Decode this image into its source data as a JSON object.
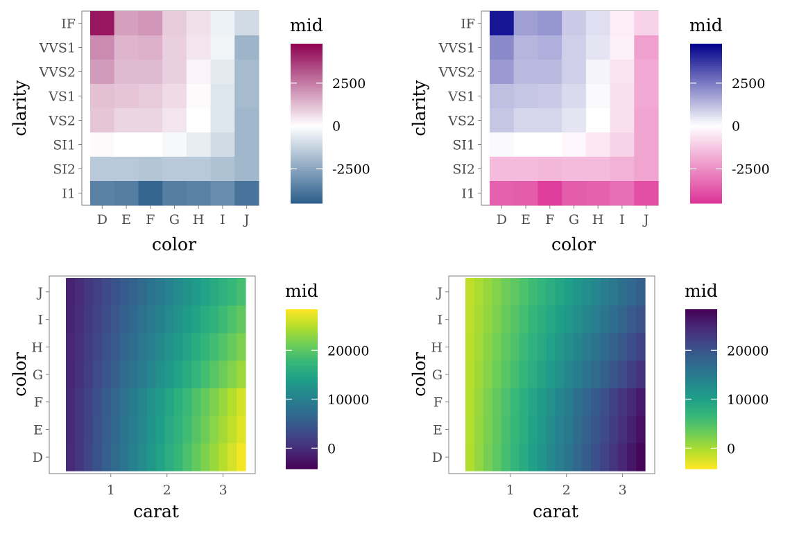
{
  "chart_data": [
    {
      "type": "heatmap",
      "xlabel": "color",
      "ylabel": "clarity",
      "x_categories": [
        "D",
        "E",
        "F",
        "G",
        "H",
        "I",
        "J"
      ],
      "y_categories": [
        "IF",
        "VVS1",
        "VVS2",
        "VS1",
        "VS2",
        "SI1",
        "SI2",
        "I1"
      ],
      "values": [
        [
          4400,
          1800,
          2000,
          1000,
          600,
          -400,
          -1000
        ],
        [
          2200,
          1400,
          1500,
          900,
          500,
          -300,
          -2100
        ],
        [
          1900,
          1300,
          1300,
          900,
          200,
          -600,
          -1900
        ],
        [
          1200,
          1100,
          1000,
          700,
          100,
          -700,
          -1900
        ],
        [
          1100,
          800,
          800,
          500,
          0,
          -700,
          -2000
        ],
        [
          100,
          0,
          0,
          -200,
          -500,
          -1000,
          -2000
        ],
        [
          -1500,
          -1500,
          -1600,
          -1500,
          -1500,
          -1700,
          -2000
        ],
        [
          -3500,
          -3600,
          -4300,
          -3600,
          -3500,
          -3200,
          -3900
        ]
      ],
      "legend": {
        "title": "mid",
        "breaks": [
          2500,
          0,
          -2500
        ],
        "break_labels": [
          "2500",
          "0",
          "-2500"
        ],
        "range": [
          -4500,
          4800
        ],
        "colors": {
          "high": "#8e0152",
          "mid": "#ffffff",
          "low": "#2c5e8c"
        }
      }
    },
    {
      "type": "heatmap",
      "xlabel": "color",
      "ylabel": "clarity",
      "x_categories": [
        "D",
        "E",
        "F",
        "G",
        "H",
        "I",
        "J"
      ],
      "y_categories": [
        "IF",
        "VVS1",
        "VVS2",
        "VS1",
        "VS2",
        "SI1",
        "SI2",
        "I1"
      ],
      "values": [
        [
          4400,
          1800,
          2000,
          1000,
          600,
          -400,
          -1000
        ],
        [
          2200,
          1400,
          1500,
          900,
          500,
          -300,
          -2100
        ],
        [
          1900,
          1300,
          1300,
          900,
          200,
          -600,
          -1900
        ],
        [
          1200,
          1100,
          1000,
          700,
          100,
          -700,
          -1900
        ],
        [
          1100,
          800,
          800,
          500,
          0,
          -700,
          -2000
        ],
        [
          100,
          0,
          0,
          -200,
          -500,
          -1000,
          -2000
        ],
        [
          -1500,
          -1500,
          -1600,
          -1500,
          -1500,
          -1700,
          -2000
        ],
        [
          -3500,
          -3600,
          -4300,
          -3600,
          -3500,
          -3200,
          -3900
        ]
      ],
      "legend": {
        "title": "mid",
        "breaks": [
          2500,
          0,
          -2500
        ],
        "break_labels": [
          "2500",
          "0",
          "-2500"
        ],
        "range": [
          -4500,
          4800
        ],
        "colors": {
          "high": "#00008b",
          "mid": "#ffffff",
          "low": "#dd3497"
        }
      }
    },
    {
      "type": "heatmap",
      "xlabel": "carat",
      "ylabel": "color",
      "x_ticks": [
        1,
        2,
        3
      ],
      "x_range": [
        0.2,
        3.4
      ],
      "y_categories": [
        "J",
        "I",
        "H",
        "G",
        "F",
        "E",
        "D"
      ],
      "bins": 20,
      "slopes": [
        6500,
        7000,
        7500,
        8000,
        8800,
        9000,
        9300
      ],
      "legend": {
        "title": "mid",
        "breaks": [
          20000,
          10000,
          0
        ],
        "break_labels": [
          "20000",
          "10000",
          "0"
        ],
        "range": [
          -4200,
          28400
        ],
        "palette": "viridis"
      }
    },
    {
      "type": "heatmap",
      "xlabel": "carat",
      "ylabel": "color",
      "x_ticks": [
        1,
        2,
        3
      ],
      "x_range": [
        0.2,
        3.4
      ],
      "y_categories": [
        "J",
        "I",
        "H",
        "G",
        "F",
        "E",
        "D"
      ],
      "bins": 20,
      "slopes": [
        6500,
        7000,
        7500,
        8000,
        8800,
        9000,
        9300
      ],
      "legend": {
        "title": "mid",
        "breaks": [
          20000,
          10000,
          0
        ],
        "break_labels": [
          "20000",
          "10000",
          "0"
        ],
        "range": [
          -4200,
          28400
        ],
        "palette": "viridis-reversed"
      }
    }
  ]
}
